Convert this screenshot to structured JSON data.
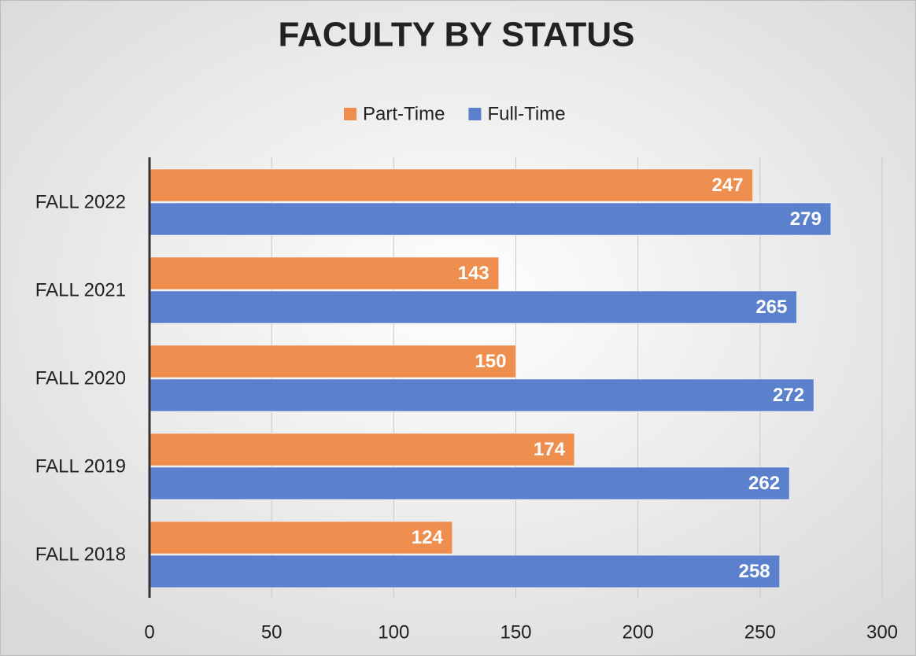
{
  "chart_data": {
    "type": "hbar",
    "title": "FACULTY BY STATUS",
    "categories": [
      "FALL 2022",
      "FALL 2021",
      "FALL 2020",
      "FALL 2019",
      "FALL 2018"
    ],
    "series": [
      {
        "name": "Part-Time",
        "color": "#ee8f4f",
        "values": [
          247,
          143,
          150,
          174,
          124
        ]
      },
      {
        "name": "Full-Time",
        "color": "#5b80cc",
        "values": [
          279,
          265,
          272,
          262,
          258
        ]
      }
    ],
    "xlim": [
      0,
      300
    ],
    "xticks": [
      0,
      50,
      100,
      150,
      200,
      250,
      300
    ],
    "grid": true,
    "legend": "top"
  }
}
